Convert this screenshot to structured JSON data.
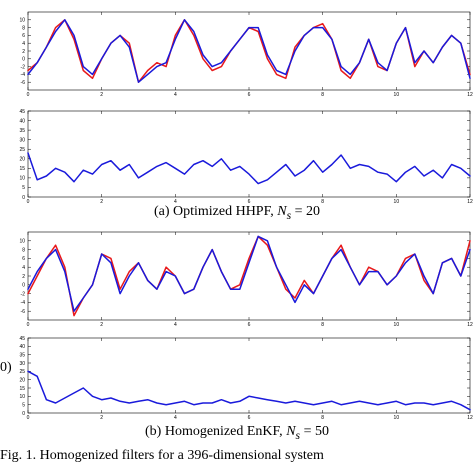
{
  "captions": {
    "a": {
      "prefix": "(a)",
      "text": "Optimized HHPF,",
      "var": "N",
      "sub": "s",
      "eq": "= 20"
    },
    "b": {
      "prefix": "(b)",
      "text": "Homogenized EnKF,",
      "var": "N",
      "sub": "s",
      "eq": "= 50"
    },
    "fig": "Fig. 1.   Homogenized filters for a 396-dimensional system",
    "left_edge": "0)"
  },
  "colors": {
    "truth": "#e8191b",
    "estimate": "#1a1adb",
    "axis": "#000000"
  },
  "chart_data": [
    {
      "type": "line",
      "xlim": [
        0,
        12
      ],
      "ylim": [
        -8,
        12
      ],
      "xticks": [
        0,
        2,
        4,
        6,
        8,
        10,
        12
      ],
      "yticks": [
        -6,
        -4,
        -2,
        0,
        2,
        4,
        6,
        8,
        10
      ],
      "x": [
        0,
        0.25,
        0.5,
        0.75,
        1,
        1.25,
        1.5,
        1.75,
        2,
        2.25,
        2.5,
        2.75,
        3,
        3.25,
        3.5,
        3.75,
        4,
        4.25,
        4.5,
        4.75,
        5,
        5.25,
        5.5,
        5.75,
        6,
        6.25,
        6.5,
        6.75,
        7,
        7.25,
        7.5,
        7.75,
        8,
        8.25,
        8.5,
        8.75,
        9,
        9.25,
        9.5,
        9.75,
        10,
        10.25,
        10.5,
        10.75,
        11,
        11.25,
        11.5,
        11.75,
        12
      ],
      "series": [
        {
          "color": "#e8191b",
          "values": [
            -3,
            -1,
            3,
            8,
            10,
            5,
            -3,
            -5,
            0,
            4,
            6,
            4,
            -6,
            -3,
            -1,
            -2,
            6,
            10,
            6,
            0,
            -3,
            -2,
            2,
            5,
            8,
            7,
            0,
            -4,
            -5,
            3,
            6,
            8,
            9,
            5,
            -3,
            -5,
            -1,
            5,
            -2,
            -3,
            4,
            8,
            -2,
            2,
            -1,
            3,
            6,
            4,
            -4
          ]
        },
        {
          "color": "#1a1adb",
          "values": [
            -4,
            -1,
            3,
            7,
            10,
            6,
            -2,
            -4,
            0,
            4,
            6,
            3,
            -6,
            -4,
            -2,
            -1,
            5,
            10,
            7,
            1,
            -2,
            -1,
            2,
            5,
            8,
            8,
            1,
            -3,
            -4,
            2,
            6,
            8,
            8,
            5,
            -2,
            -4,
            -1,
            5,
            -1,
            -3,
            4,
            8,
            -1,
            2,
            -1,
            3,
            6,
            4,
            -5
          ]
        }
      ]
    },
    {
      "type": "line",
      "xlim": [
        0,
        12
      ],
      "ylim": [
        0,
        45
      ],
      "xticks": [
        0,
        2,
        4,
        6,
        8,
        10,
        12
      ],
      "yticks": [
        0,
        5,
        10,
        15,
        20,
        25,
        30,
        35,
        40,
        45
      ],
      "x": [
        0,
        0.25,
        0.5,
        0.75,
        1,
        1.25,
        1.5,
        1.75,
        2,
        2.25,
        2.5,
        2.75,
        3,
        3.25,
        3.5,
        3.75,
        4,
        4.25,
        4.5,
        4.75,
        5,
        5.25,
        5.5,
        5.75,
        6,
        6.25,
        6.5,
        6.75,
        7,
        7.25,
        7.5,
        7.75,
        8,
        8.25,
        8.5,
        8.75,
        9,
        9.25,
        9.5,
        9.75,
        10,
        10.25,
        10.5,
        10.75,
        11,
        11.25,
        11.5,
        11.75,
        12
      ],
      "series": [
        {
          "color": "#1a1adb",
          "values": [
            23,
            9,
            11,
            15,
            13,
            8,
            14,
            12,
            17,
            19,
            14,
            17,
            10,
            13,
            16,
            18,
            15,
            12,
            17,
            19,
            16,
            20,
            14,
            16,
            12,
            7,
            9,
            13,
            17,
            11,
            14,
            19,
            13,
            17,
            22,
            15,
            17,
            16,
            13,
            12,
            8,
            13,
            16,
            11,
            14,
            10,
            17,
            15,
            11
          ]
        }
      ]
    },
    {
      "type": "line",
      "xlim": [
        0,
        12
      ],
      "ylim": [
        -8,
        12
      ],
      "xticks": [
        0,
        2,
        4,
        6,
        8,
        10,
        12
      ],
      "yticks": [
        -6,
        -4,
        -2,
        0,
        2,
        4,
        6,
        8,
        10
      ],
      "x": [
        0,
        0.25,
        0.5,
        0.75,
        1,
        1.25,
        1.5,
        1.75,
        2,
        2.25,
        2.5,
        2.75,
        3,
        3.25,
        3.5,
        3.75,
        4,
        4.25,
        4.5,
        4.75,
        5,
        5.25,
        5.5,
        5.75,
        6,
        6.25,
        6.5,
        6.75,
        7,
        7.25,
        7.5,
        7.75,
        8,
        8.25,
        8.5,
        8.75,
        9,
        9.25,
        9.5,
        9.75,
        10,
        10.25,
        10.5,
        10.75,
        11,
        11.25,
        11.5,
        11.75,
        12
      ],
      "series": [
        {
          "color": "#e8191b",
          "values": [
            -2,
            2,
            6,
            9,
            4,
            -7,
            -3,
            0,
            7,
            6,
            -1,
            3,
            5,
            1,
            -1,
            4,
            2,
            -2,
            -1,
            4,
            8,
            3,
            -1,
            0,
            6,
            11,
            9,
            4,
            -1,
            -3,
            1,
            -2,
            2,
            6,
            9,
            4,
            0,
            4,
            3,
            0,
            2,
            6,
            7,
            1,
            -2,
            5,
            6,
            2,
            10
          ]
        },
        {
          "color": "#1a1adb",
          "values": [
            -1,
            3,
            6,
            8,
            3,
            -6,
            -3,
            0,
            7,
            5,
            -2,
            2,
            5,
            1,
            -1,
            3,
            2,
            -2,
            -1,
            4,
            8,
            3,
            -1,
            -1,
            5,
            11,
            10,
            4,
            0,
            -4,
            0,
            -2,
            2,
            6,
            8,
            4,
            0,
            3,
            3,
            0,
            2,
            5,
            7,
            2,
            -2,
            5,
            6,
            2,
            8
          ]
        }
      ]
    },
    {
      "type": "line",
      "xlim": [
        0,
        12
      ],
      "ylim": [
        0,
        45
      ],
      "xticks": [
        0,
        2,
        4,
        6,
        8,
        10,
        12
      ],
      "yticks": [
        0,
        5,
        10,
        15,
        20,
        25,
        30,
        35,
        40,
        45
      ],
      "x": [
        0,
        0.25,
        0.5,
        0.75,
        1,
        1.25,
        1.5,
        1.75,
        2,
        2.25,
        2.5,
        2.75,
        3,
        3.25,
        3.5,
        3.75,
        4,
        4.25,
        4.5,
        4.75,
        5,
        5.25,
        5.5,
        5.75,
        6,
        6.25,
        6.5,
        6.75,
        7,
        7.25,
        7.5,
        7.75,
        8,
        8.25,
        8.5,
        8.75,
        9,
        9.25,
        9.5,
        9.75,
        10,
        10.25,
        10.5,
        10.75,
        11,
        11.25,
        11.5,
        11.75,
        12
      ],
      "series": [
        {
          "color": "#1a1adb",
          "values": [
            25,
            22,
            8,
            6,
            9,
            12,
            15,
            10,
            8,
            9,
            7,
            6,
            7,
            8,
            6,
            5,
            6,
            7,
            5,
            6,
            6,
            8,
            6,
            7,
            10,
            9,
            8,
            7,
            6,
            7,
            6,
            5,
            6,
            7,
            5,
            6,
            7,
            6,
            5,
            6,
            7,
            5,
            6,
            6,
            5,
            6,
            7,
            5,
            2
          ]
        }
      ]
    }
  ]
}
